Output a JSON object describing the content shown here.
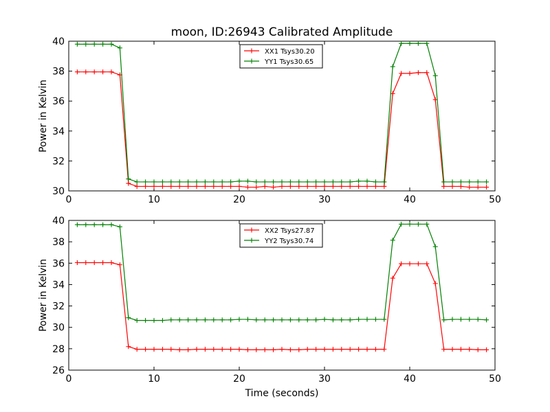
{
  "chart_data": [
    {
      "type": "line",
      "title": "moon, ID:26943 Calibrated Amplitude",
      "xlabel": "",
      "ylabel": "Power in Kelvin",
      "xlim": [
        0,
        50
      ],
      "ylim": [
        30,
        40
      ],
      "xticks": [
        "0",
        "10",
        "20",
        "30",
        "40",
        "50"
      ],
      "yticks": [
        "30",
        "32",
        "34",
        "36",
        "38",
        "40"
      ],
      "legend_position": "top-center",
      "x": [
        1,
        2,
        3,
        4,
        5,
        6,
        7,
        8,
        9,
        10,
        11,
        12,
        13,
        14,
        15,
        16,
        17,
        18,
        19,
        20,
        21,
        22,
        23,
        24,
        25,
        26,
        27,
        28,
        29,
        30,
        31,
        32,
        33,
        34,
        35,
        36,
        37,
        38,
        39,
        40,
        41,
        42,
        43,
        44,
        45,
        46,
        47,
        48,
        49
      ],
      "series": [
        {
          "name": "XX1 Tsys30.20",
          "color": "#ff0000",
          "values": [
            37.95,
            37.95,
            37.95,
            37.95,
            37.95,
            37.75,
            30.5,
            30.3,
            30.3,
            30.3,
            30.3,
            30.3,
            30.3,
            30.3,
            30.3,
            30.3,
            30.3,
            30.3,
            30.3,
            30.3,
            30.25,
            30.25,
            30.3,
            30.25,
            30.3,
            30.3,
            30.3,
            30.3,
            30.3,
            30.3,
            30.3,
            30.3,
            30.3,
            30.3,
            30.3,
            30.3,
            30.3,
            36.5,
            37.85,
            37.85,
            37.9,
            37.9,
            36.1,
            30.3,
            30.3,
            30.3,
            30.25,
            30.25,
            30.25
          ]
        },
        {
          "name": "YY1 Tsys30.65",
          "color": "#008000",
          "values": [
            39.8,
            39.8,
            39.8,
            39.8,
            39.8,
            39.55,
            30.8,
            30.6,
            30.6,
            30.6,
            30.6,
            30.6,
            30.6,
            30.6,
            30.6,
            30.6,
            30.6,
            30.6,
            30.6,
            30.65,
            30.65,
            30.6,
            30.6,
            30.6,
            30.6,
            30.6,
            30.6,
            30.6,
            30.6,
            30.6,
            30.6,
            30.6,
            30.6,
            30.65,
            30.65,
            30.6,
            30.6,
            38.3,
            39.85,
            39.85,
            39.85,
            39.85,
            37.7,
            30.6,
            30.6,
            30.6,
            30.6,
            30.6,
            30.6
          ]
        }
      ]
    },
    {
      "type": "line",
      "title": "",
      "xlabel": "Time (seconds)",
      "ylabel": "Power in Kelvin",
      "xlim": [
        0,
        50
      ],
      "ylim": [
        26,
        40
      ],
      "xticks": [
        "0",
        "10",
        "20",
        "30",
        "40",
        "50"
      ],
      "yticks": [
        "26",
        "28",
        "30",
        "32",
        "34",
        "36",
        "38",
        "40"
      ],
      "legend_position": "top-center",
      "x": [
        1,
        2,
        3,
        4,
        5,
        6,
        7,
        8,
        9,
        10,
        11,
        12,
        13,
        14,
        15,
        16,
        17,
        18,
        19,
        20,
        21,
        22,
        23,
        24,
        25,
        26,
        27,
        28,
        29,
        30,
        31,
        32,
        33,
        34,
        35,
        36,
        37,
        38,
        39,
        40,
        41,
        42,
        43,
        44,
        45,
        46,
        47,
        48,
        49
      ],
      "series": [
        {
          "name": "XX2 Tsys27.87",
          "color": "#ff0000",
          "values": [
            36.05,
            36.05,
            36.05,
            36.05,
            36.05,
            35.85,
            28.2,
            27.95,
            27.95,
            27.95,
            27.95,
            27.95,
            27.9,
            27.9,
            27.95,
            27.95,
            27.95,
            27.95,
            27.95,
            27.95,
            27.9,
            27.9,
            27.9,
            27.9,
            27.95,
            27.9,
            27.9,
            27.95,
            27.95,
            27.95,
            27.95,
            27.95,
            27.95,
            27.95,
            27.95,
            27.95,
            27.95,
            34.6,
            35.95,
            35.95,
            35.95,
            35.95,
            34.1,
            27.95,
            27.95,
            27.95,
            27.95,
            27.9,
            27.9
          ]
        },
        {
          "name": "YY2 Tsys30.74",
          "color": "#008000",
          "values": [
            39.6,
            39.6,
            39.6,
            39.6,
            39.6,
            39.4,
            30.9,
            30.65,
            30.65,
            30.65,
            30.65,
            30.7,
            30.7,
            30.7,
            30.7,
            30.7,
            30.7,
            30.7,
            30.7,
            30.75,
            30.75,
            30.7,
            30.7,
            30.7,
            30.7,
            30.7,
            30.7,
            30.7,
            30.7,
            30.75,
            30.7,
            30.7,
            30.7,
            30.75,
            30.75,
            30.75,
            30.75,
            38.15,
            39.65,
            39.65,
            39.65,
            39.65,
            37.55,
            30.7,
            30.75,
            30.75,
            30.75,
            30.75,
            30.7
          ]
        }
      ]
    }
  ]
}
